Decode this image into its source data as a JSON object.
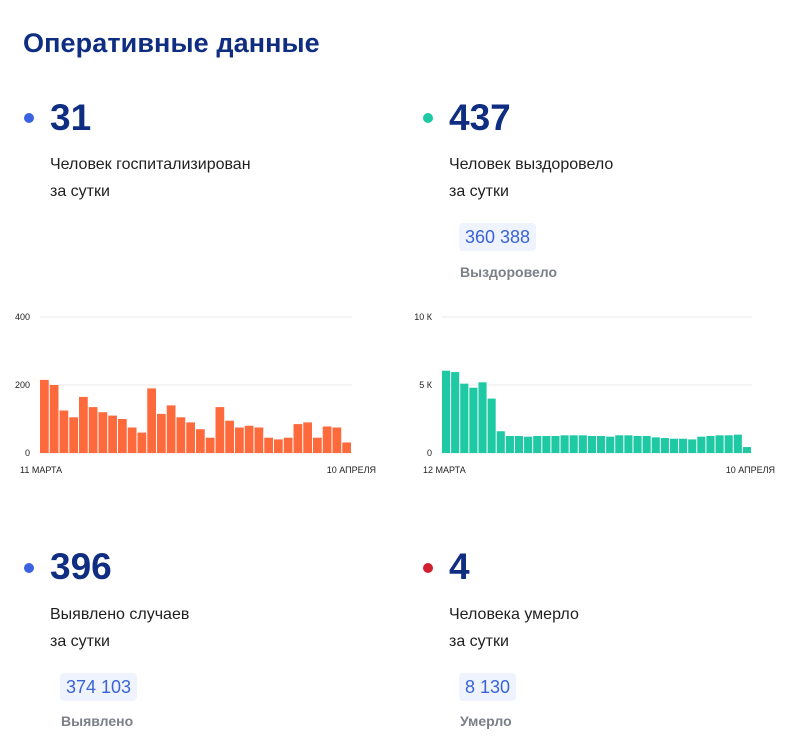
{
  "page_title": "Оперативные данные",
  "stats": {
    "hospitalized": {
      "value": "31",
      "line1": "Человек госпитализирован",
      "line2": "за сутки",
      "dot_color": "#3b63e0"
    },
    "recovered": {
      "value": "437",
      "line1": "Человек выздоровело",
      "line2": "за сутки",
      "total": "360 388",
      "total_label": "Выздоровело",
      "dot_color": "#1ec9a3"
    },
    "cases": {
      "value": "396",
      "line1": "Выявлено случаев",
      "line2": "за сутки",
      "total": "374 103",
      "total_label": "Выявлено",
      "dot_color": "#3b63e0"
    },
    "deaths": {
      "value": "4",
      "line1": "Человека умерло",
      "line2": "за сутки",
      "total": "8 130",
      "total_label": "Умерло",
      "dot_color": "#d0202f"
    }
  },
  "chart_data": [
    {
      "type": "bar",
      "color": "#ff6a3d",
      "y_ticks": [
        "400",
        "200",
        "0"
      ],
      "y_tick_values": [
        400,
        200,
        0
      ],
      "ylim": [
        0,
        400
      ],
      "x_start_label": "11 МАРТА",
      "x_end_label": "10 АПРЕЛЯ",
      "values": [
        215,
        200,
        125,
        105,
        165,
        135,
        120,
        110,
        100,
        75,
        60,
        190,
        115,
        140,
        105,
        90,
        70,
        45,
        135,
        95,
        75,
        80,
        75,
        45,
        40,
        45,
        85,
        90,
        45,
        78,
        75,
        31
      ]
    },
    {
      "type": "bar",
      "color": "#1ec9a3",
      "y_ticks": [
        "10 К",
        "5 К",
        "0"
      ],
      "y_tick_values": [
        10000,
        5000,
        0
      ],
      "ylim": [
        0,
        10000
      ],
      "x_start_label": "12 МАРТА",
      "x_end_label": "10 АПРЕЛЯ",
      "values": [
        6050,
        5950,
        5100,
        4800,
        5200,
        4000,
        1600,
        1250,
        1250,
        1200,
        1250,
        1250,
        1250,
        1300,
        1300,
        1300,
        1250,
        1250,
        1200,
        1300,
        1300,
        1250,
        1250,
        1150,
        1100,
        1050,
        1050,
        1000,
        1200,
        1250,
        1300,
        1300,
        1350,
        437
      ]
    }
  ]
}
